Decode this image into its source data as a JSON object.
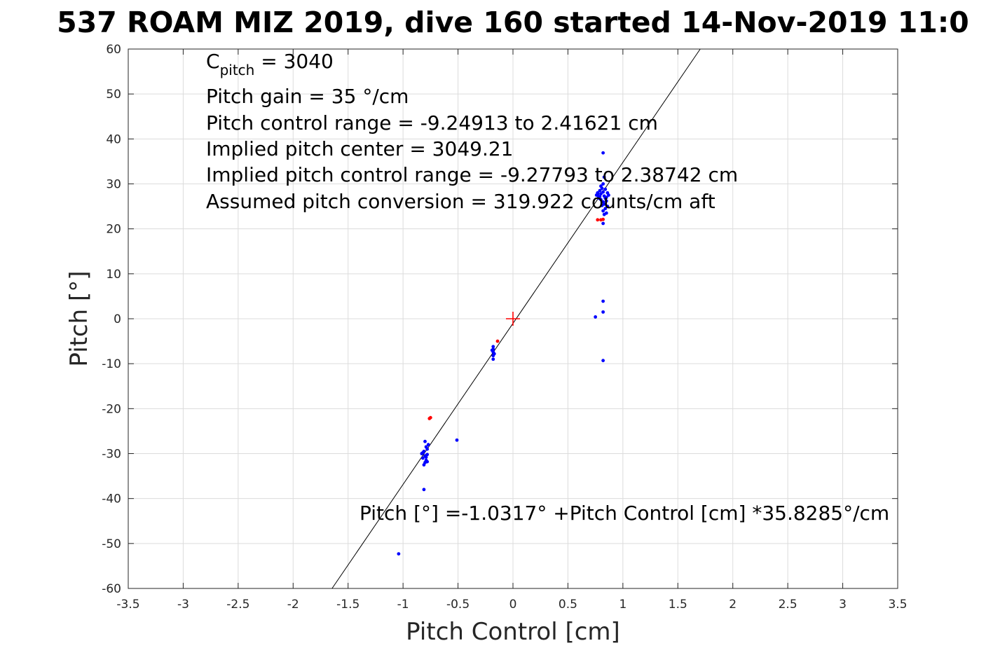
{
  "chart_data": {
    "type": "scatter",
    "title": "537 ROAM MIZ 2019, dive 160 started 14-Nov-2019 11:0",
    "xlabel": "Pitch Control [cm]",
    "ylabel": "Pitch [°]",
    "xlim": [
      -3.5,
      3.5
    ],
    "ylim": [
      -60,
      60
    ],
    "xticks": [
      -3.5,
      -3,
      -2.5,
      -2,
      -1.5,
      -1,
      -0.5,
      0,
      0.5,
      1,
      1.5,
      2,
      2.5,
      3,
      3.5
    ],
    "xtick_labels": [
      "-3.5",
      "-3",
      "-2.5",
      "-2",
      "-1.5",
      "-1",
      "-0.5",
      "0",
      "0.5",
      "1",
      "1.5",
      "2",
      "2.5",
      "3",
      "3.5"
    ],
    "yticks": [
      60,
      50,
      40,
      30,
      20,
      10,
      0,
      -10,
      -20,
      -30,
      -40,
      -50,
      -60
    ],
    "ytick_labels": [
      "60",
      "50",
      "40",
      "30",
      "20",
      "10",
      "0",
      "-10",
      "-20",
      "-30",
      "-40",
      "-50",
      "-60"
    ],
    "grid": true,
    "annotations": {
      "c_pitch_main": "C",
      "c_pitch_sub": "pitch",
      "c_pitch_value": " = 3040",
      "pitch_gain": "Pitch gain = 35 °/cm",
      "control_range": "Pitch control range = -9.24913 to 2.41621 cm",
      "implied_center": "Implied pitch center = 3049.21",
      "implied_range": "Implied pitch control range = -9.27793 to 2.38742 cm",
      "assumed_conversion": "Assumed pitch conversion = 319.922 counts/cm aft",
      "fit_equation": "Pitch [°] =-1.0317° +Pitch Control [cm] *35.8285°/cm"
    },
    "fit_line": {
      "intercept": -1.0317,
      "slope": 35.8285,
      "color": "#000000"
    },
    "center_marker": {
      "x": 0,
      "y": 0,
      "color": "#ff0000",
      "shape": "plus"
    },
    "series": [
      {
        "color": "#0000ff",
        "points": [
          [
            0.76,
            27.5
          ],
          [
            0.77,
            28.0
          ],
          [
            0.78,
            27.0
          ],
          [
            0.79,
            28.5
          ],
          [
            0.8,
            26.5
          ],
          [
            0.8,
            27.8
          ],
          [
            0.81,
            29.0
          ],
          [
            0.82,
            28.2
          ],
          [
            0.82,
            26.0
          ],
          [
            0.83,
            27.3
          ],
          [
            0.83,
            25.5
          ],
          [
            0.84,
            28.8
          ],
          [
            0.84,
            24.5
          ],
          [
            0.85,
            27.0
          ],
          [
            0.85,
            26.2
          ],
          [
            0.86,
            28.0
          ],
          [
            0.86,
            25.0
          ],
          [
            0.87,
            27.5
          ],
          [
            0.81,
            25.2
          ],
          [
            0.82,
            24.0
          ],
          [
            0.83,
            23.2
          ],
          [
            0.84,
            26.8
          ],
          [
            0.79,
            27.2
          ],
          [
            0.78,
            26.8
          ],
          [
            0.77,
            27.7
          ],
          [
            0.8,
            29.5
          ],
          [
            0.82,
            30.0
          ],
          [
            0.83,
            31.5
          ],
          [
            0.85,
            23.5
          ],
          [
            0.82,
            21.2
          ],
          [
            0.82,
            36.9
          ],
          [
            0.82,
            3.9
          ],
          [
            0.82,
            1.5
          ],
          [
            0.75,
            0.4
          ],
          [
            0.82,
            -9.3
          ],
          [
            -0.83,
            -30.0
          ],
          [
            -0.82,
            -31.0
          ],
          [
            -0.81,
            -29.5
          ],
          [
            -0.8,
            -32.0
          ],
          [
            -0.8,
            -30.5
          ],
          [
            -0.79,
            -28.5
          ],
          [
            -0.79,
            -31.5
          ],
          [
            -0.78,
            -29.0
          ],
          [
            -0.78,
            -30.2
          ],
          [
            -0.77,
            -28.0
          ],
          [
            -0.81,
            -32.5
          ],
          [
            -0.8,
            -27.3
          ],
          [
            -0.82,
            -29.8
          ],
          [
            -0.79,
            -30.8
          ],
          [
            -0.78,
            -31.8
          ],
          [
            -0.81,
            -38.0
          ],
          [
            -0.51,
            -27.0
          ],
          [
            -1.04,
            -52.3
          ],
          [
            -0.18,
            -6.2
          ],
          [
            -0.18,
            -6.8
          ],
          [
            -0.18,
            -7.4
          ],
          [
            -0.18,
            -8.2
          ],
          [
            -0.18,
            -9.0
          ],
          [
            -0.19,
            -7.0
          ],
          [
            -0.17,
            -7.8
          ]
        ]
      },
      {
        "color": "#ff0000",
        "points": [
          [
            0.77,
            22.0
          ],
          [
            0.8,
            22.0
          ],
          [
            0.82,
            22.1
          ],
          [
            -0.76,
            -22.2
          ],
          [
            -0.75,
            -22.0
          ],
          [
            -0.14,
            -5.0
          ]
        ]
      }
    ]
  }
}
